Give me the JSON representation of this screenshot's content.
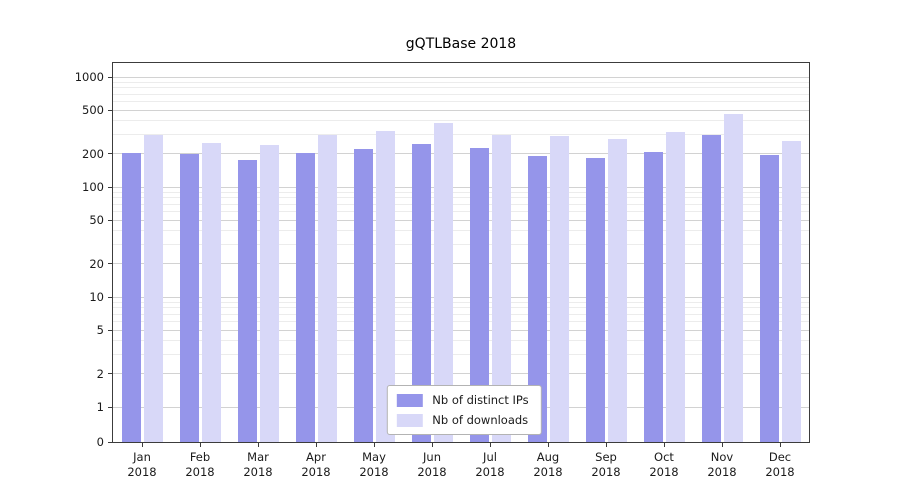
{
  "chart_data": {
    "type": "bar",
    "title": "gQTLBase 2018",
    "yscale": "symlog",
    "ylim": [
      0,
      1400
    ],
    "y_ticks": [
      0,
      1,
      2,
      5,
      10,
      20,
      50,
      100,
      200,
      500,
      1000
    ],
    "grid": "horizontal-major-and-minor",
    "legend_position": "lower center",
    "categories": [
      "Jan 2018",
      "Feb 2018",
      "Mar 2018",
      "Apr 2018",
      "May 2018",
      "Jun 2018",
      "Jul 2018",
      "Aug 2018",
      "Sep 2018",
      "Oct 2018",
      "Nov 2018",
      "Dec 2018"
    ],
    "series": [
      {
        "name": "Nb of distinct IPs",
        "color": "#9595ea",
        "values": [
          205,
          198,
          175,
          205,
          222,
          245,
          228,
          193,
          185,
          208,
          300,
          197
        ]
      },
      {
        "name": "Nb of downloads",
        "color": "#d8d8f8",
        "values": [
          295,
          252,
          240,
          295,
          320,
          385,
          297,
          290,
          275,
          315,
          465,
          262
        ]
      }
    ]
  }
}
